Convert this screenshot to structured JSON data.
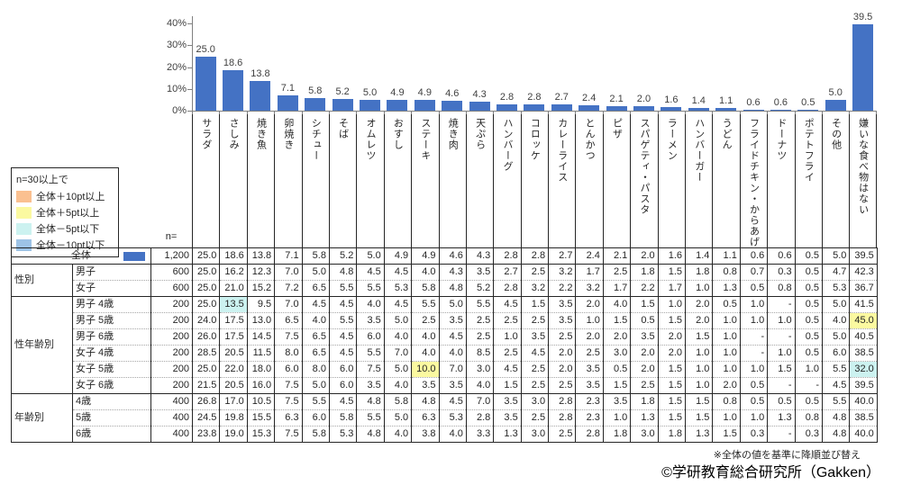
{
  "chart_data": {
    "type": "bar",
    "title": "",
    "xlabel": "",
    "ylabel": "",
    "ylim": [
      0,
      40
    ],
    "grid": false,
    "bar_color": "#4472C4",
    "yticks": [
      {
        "v": 40,
        "label": "40%"
      },
      {
        "v": 30,
        "label": "30%"
      },
      {
        "v": 20,
        "label": "20%"
      },
      {
        "v": 10,
        "label": "10%"
      },
      {
        "v": 0,
        "label": "0%"
      }
    ],
    "categories": [
      "サラダ",
      "さしみ",
      "焼き魚",
      "卵焼き",
      "シチュー",
      "そば",
      "オムレツ",
      "おすし",
      "ステーキ",
      "焼き肉",
      "天ぷら",
      "ハンバーグ",
      "コロッケ",
      "カレーライス",
      "とんかつ",
      "ピザ",
      "スパゲティ・パスタ",
      "ラーメン",
      "ハンバーガー",
      "うどん",
      "フライドチキン・からあげ",
      "ドーナツ",
      "ポテトフライ",
      "その他",
      "嫌いな食べ物はない"
    ],
    "values": [
      25.0,
      18.6,
      13.8,
      7.1,
      5.8,
      5.2,
      5.0,
      4.9,
      4.9,
      4.6,
      4.3,
      2.8,
      2.8,
      2.7,
      2.4,
      2.1,
      2.0,
      1.6,
      1.4,
      1.1,
      0.6,
      0.6,
      0.5,
      5.0,
      39.5
    ]
  },
  "legend": {
    "title": "n=30以上で",
    "items": [
      {
        "key": "plus10",
        "label": "全体＋10pt以上",
        "color": "#FAC090"
      },
      {
        "key": "plus5",
        "label": "全体＋5pt以上",
        "color": "#FBF9A0"
      },
      {
        "key": "minus5",
        "label": "全体－5pt以下",
        "color": "#CCF2F0"
      },
      {
        "key": "minus10",
        "label": "全体－10pt以下",
        "color": "#9DC3E6"
      }
    ]
  },
  "table": {
    "n_header": "n=",
    "rows": [
      {
        "label": "全体",
        "total": true,
        "n": "1,200",
        "values": [
          "25.0",
          "18.6",
          "13.8",
          "7.1",
          "5.8",
          "5.2",
          "5.0",
          "4.9",
          "4.9",
          "4.6",
          "4.3",
          "2.8",
          "2.8",
          "2.7",
          "2.4",
          "2.1",
          "2.0",
          "1.6",
          "1.4",
          "1.1",
          "0.6",
          "0.6",
          "0.5",
          "5.0",
          "39.5"
        ]
      },
      {
        "group": "性別",
        "span": 2,
        "label": "男子",
        "n": "600",
        "values": [
          "25.0",
          "16.2",
          "12.3",
          "7.0",
          "5.0",
          "4.8",
          "4.5",
          "4.5",
          "4.0",
          "4.3",
          "3.5",
          "2.7",
          "2.5",
          "3.2",
          "1.7",
          "2.5",
          "1.8",
          "1.5",
          "1.8",
          "0.8",
          "0.7",
          "0.3",
          "0.5",
          "4.7",
          "42.3"
        ]
      },
      {
        "label": "女子",
        "n": "600",
        "values": [
          "25.0",
          "21.0",
          "15.2",
          "7.2",
          "6.5",
          "5.5",
          "5.5",
          "5.3",
          "5.8",
          "4.8",
          "5.2",
          "2.8",
          "3.2",
          "2.2",
          "3.2",
          "1.7",
          "2.2",
          "1.7",
          "1.0",
          "1.3",
          "0.5",
          "0.8",
          "0.5",
          "5.3",
          "36.7"
        ]
      },
      {
        "group": "性年齢別",
        "span": 6,
        "label": "男子 4歳",
        "n": "200",
        "values": [
          "25.0",
          "13.5",
          "9.5",
          "7.0",
          "4.5",
          "4.5",
          "4.0",
          "4.5",
          "5.5",
          "5.0",
          "5.5",
          "4.5",
          "1.5",
          "3.5",
          "2.0",
          "4.0",
          "1.5",
          "1.0",
          "2.0",
          "0.5",
          "1.0",
          "-",
          "0.5",
          "5.0",
          "41.5"
        ]
      },
      {
        "label": "男子 5歳",
        "n": "200",
        "values": [
          "24.0",
          "17.5",
          "13.0",
          "6.5",
          "4.0",
          "5.5",
          "3.5",
          "5.0",
          "2.5",
          "3.5",
          "2.5",
          "2.5",
          "2.5",
          "3.5",
          "1.0",
          "1.5",
          "0.5",
          "1.5",
          "2.0",
          "1.0",
          "1.0",
          "1.0",
          "0.5",
          "4.0",
          "45.0"
        ]
      },
      {
        "label": "男子 6歳",
        "n": "200",
        "values": [
          "26.0",
          "17.5",
          "14.5",
          "7.5",
          "6.5",
          "4.5",
          "6.0",
          "4.0",
          "4.0",
          "4.5",
          "2.5",
          "1.0",
          "3.5",
          "2.5",
          "2.0",
          "2.0",
          "3.5",
          "2.0",
          "1.5",
          "1.0",
          "-",
          "-",
          "0.5",
          "5.0",
          "40.5"
        ]
      },
      {
        "label": "女子 4歳",
        "n": "200",
        "values": [
          "28.5",
          "20.5",
          "11.5",
          "8.0",
          "6.5",
          "4.5",
          "5.5",
          "7.0",
          "4.0",
          "4.0",
          "8.5",
          "2.5",
          "4.5",
          "2.0",
          "2.5",
          "3.0",
          "2.0",
          "2.0",
          "1.0",
          "1.0",
          "-",
          "1.0",
          "0.5",
          "6.0",
          "38.5"
        ]
      },
      {
        "label": "女子 5歳",
        "n": "200",
        "values": [
          "25.0",
          "22.0",
          "18.0",
          "6.0",
          "8.0",
          "6.0",
          "7.5",
          "5.0",
          "10.0",
          "7.0",
          "3.0",
          "4.5",
          "2.5",
          "2.0",
          "3.5",
          "0.5",
          "2.0",
          "1.5",
          "1.0",
          "1.0",
          "1.0",
          "1.5",
          "1.0",
          "5.5",
          "32.0"
        ]
      },
      {
        "label": "女子 6歳",
        "n": "200",
        "values": [
          "21.5",
          "20.5",
          "16.0",
          "7.5",
          "5.0",
          "6.0",
          "3.5",
          "4.0",
          "3.5",
          "3.5",
          "4.0",
          "1.5",
          "2.5",
          "2.5",
          "3.5",
          "1.5",
          "2.5",
          "1.5",
          "1.0",
          "2.0",
          "0.5",
          "-",
          "-",
          "4.5",
          "39.5"
        ]
      },
      {
        "group": "年齢別",
        "span": 3,
        "label": "4歳",
        "n": "400",
        "values": [
          "26.8",
          "17.0",
          "10.5",
          "7.5",
          "5.5",
          "4.5",
          "4.8",
          "5.8",
          "4.8",
          "4.5",
          "7.0",
          "3.5",
          "3.0",
          "2.8",
          "2.3",
          "3.5",
          "1.8",
          "1.5",
          "1.5",
          "0.8",
          "0.5",
          "0.5",
          "0.5",
          "5.5",
          "40.0"
        ]
      },
      {
        "label": "5歳",
        "n": "400",
        "values": [
          "24.5",
          "19.8",
          "15.5",
          "6.3",
          "6.0",
          "5.8",
          "5.5",
          "5.0",
          "6.3",
          "5.3",
          "2.8",
          "3.5",
          "2.5",
          "2.8",
          "2.3",
          "1.0",
          "1.3",
          "1.5",
          "1.5",
          "1.0",
          "1.0",
          "1.3",
          "0.8",
          "4.8",
          "38.5"
        ]
      },
      {
        "label": "6歳",
        "n": "400",
        "values": [
          "23.8",
          "19.0",
          "15.3",
          "7.5",
          "5.8",
          "5.3",
          "4.8",
          "4.0",
          "3.8",
          "4.0",
          "3.3",
          "1.3",
          "3.0",
          "2.5",
          "2.8",
          "1.8",
          "3.0",
          "1.8",
          "1.3",
          "1.5",
          "0.3",
          "-",
          "0.3",
          "4.8",
          "40.0"
        ]
      }
    ],
    "highlights": {
      "3,1": "minus5",
      "4,24": "plus5",
      "7,8": "plus5",
      "7,24": "minus5"
    }
  },
  "footnote": "※全体の値を基準に降順並び替え",
  "copyright": "©学研教育総合研究所（Gakken）"
}
